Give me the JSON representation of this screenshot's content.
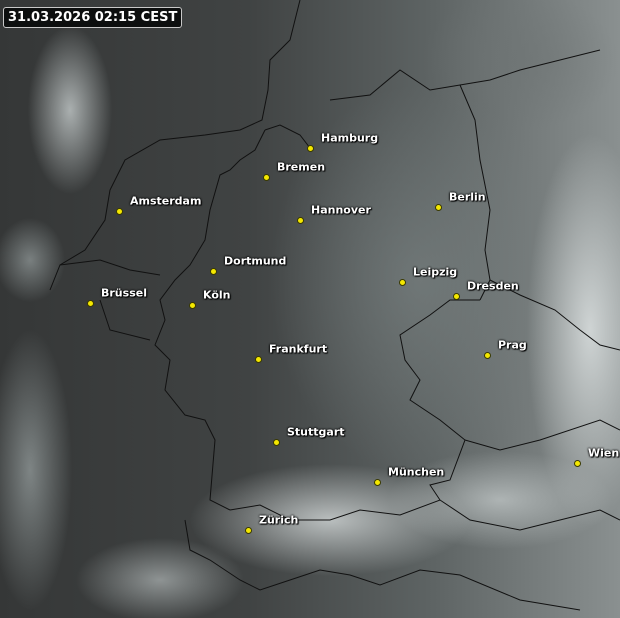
{
  "timestamp": "31.03.2026 02:15 CEST",
  "colors": {
    "city_marker": "#f5e800",
    "label_text": "#ffffff",
    "border_lines": "#111111"
  },
  "cities": [
    {
      "name": "Hamburg"
    },
    {
      "name": "Bremen"
    },
    {
      "name": "Amsterdam"
    },
    {
      "name": "Hannover"
    },
    {
      "name": "Berlin"
    },
    {
      "name": "Dortmund"
    },
    {
      "name": "Leipzig"
    },
    {
      "name": "Dresden"
    },
    {
      "name": "Brüssel"
    },
    {
      "name": "Köln"
    },
    {
      "name": "Prag"
    },
    {
      "name": "Frankfurt"
    },
    {
      "name": "Stuttgart"
    },
    {
      "name": "München"
    },
    {
      "name": "Wien"
    },
    {
      "name": "Zürich"
    }
  ]
}
